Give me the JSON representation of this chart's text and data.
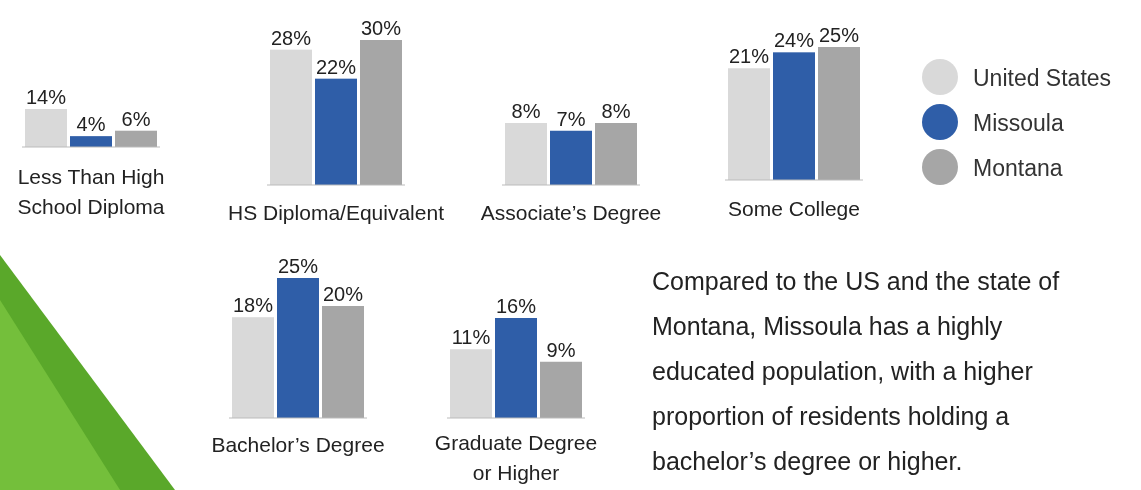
{
  "chart_data": [
    {
      "type": "bar",
      "categories": [
        "Less Than High School Diploma"
      ],
      "series": [
        {
          "color": "#d9d9d9",
          "values": [
            14
          ],
          "value_labels": [
            "14%"
          ]
        },
        {
          "color": "#2f5ea8",
          "values": [
            4
          ],
          "value_labels": [
            "4%"
          ]
        },
        {
          "color": "#a6a6a6",
          "values": [
            6
          ],
          "value_labels": [
            "6%"
          ]
        }
      ]
    },
    {
      "type": "bar",
      "categories": [
        "HS Diploma/Equivalent"
      ],
      "series": [
        {
          "color": "#d9d9d9",
          "values": [
            28
          ],
          "value_labels": [
            "28%"
          ]
        },
        {
          "color": "#2f5ea8",
          "values": [
            22
          ],
          "value_labels": [
            "22%"
          ]
        },
        {
          "color": "#a6a6a6",
          "values": [
            30
          ],
          "value_labels": [
            "30%"
          ]
        }
      ]
    },
    {
      "type": "bar",
      "categories": [
        "Associate’s Degree"
      ],
      "series": [
        {
          "color": "#d9d9d9",
          "values": [
            8
          ],
          "value_labels": [
            "8%"
          ]
        },
        {
          "color": "#2f5ea8",
          "values": [
            7
          ],
          "value_labels": [
            "7%"
          ]
        },
        {
          "color": "#a6a6a6",
          "values": [
            8
          ],
          "value_labels": [
            "8%"
          ]
        }
      ]
    },
    {
      "type": "bar",
      "categories": [
        "Some College"
      ],
      "legend": "right",
      "series": [
        {
          "name": "United States",
          "color": "#d9d9d9",
          "values": [
            21
          ],
          "value_labels": [
            "21%"
          ]
        },
        {
          "name": "Missoula",
          "color": "#2f5ea8",
          "values": [
            24
          ],
          "value_labels": [
            "24%"
          ]
        },
        {
          "name": "Montana",
          "color": "#a6a6a6",
          "values": [
            25
          ],
          "value_labels": [
            "25%"
          ]
        }
      ]
    },
    {
      "type": "bar",
      "categories": [
        "Bachelor’s Degree"
      ],
      "series": [
        {
          "color": "#d9d9d9",
          "values": [
            18
          ],
          "value_labels": [
            "18%"
          ]
        },
        {
          "color": "#2f5ea8",
          "values": [
            25
          ],
          "value_labels": [
            "25%"
          ]
        },
        {
          "color": "#a6a6a6",
          "values": [
            20
          ],
          "value_labels": [
            "20%"
          ]
        }
      ]
    },
    {
      "type": "bar",
      "categories": [
        "Graduate Degree or Higher"
      ],
      "annotations": [
        "Compared to the US and the state of Montana, Missoula has a highly educated population, with a higher proportion of residents holding a bachelor’s degree or higher."
      ],
      "series": [
        {
          "color": "#d9d9d9",
          "values": [
            11
          ],
          "value_labels": [
            "11%"
          ]
        },
        {
          "color": "#2f5ea8",
          "values": [
            16
          ],
          "value_labels": [
            "16%"
          ]
        },
        {
          "color": "#a6a6a6",
          "values": [
            9
          ],
          "value_labels": [
            "9%"
          ]
        }
      ]
    }
  ]
}
